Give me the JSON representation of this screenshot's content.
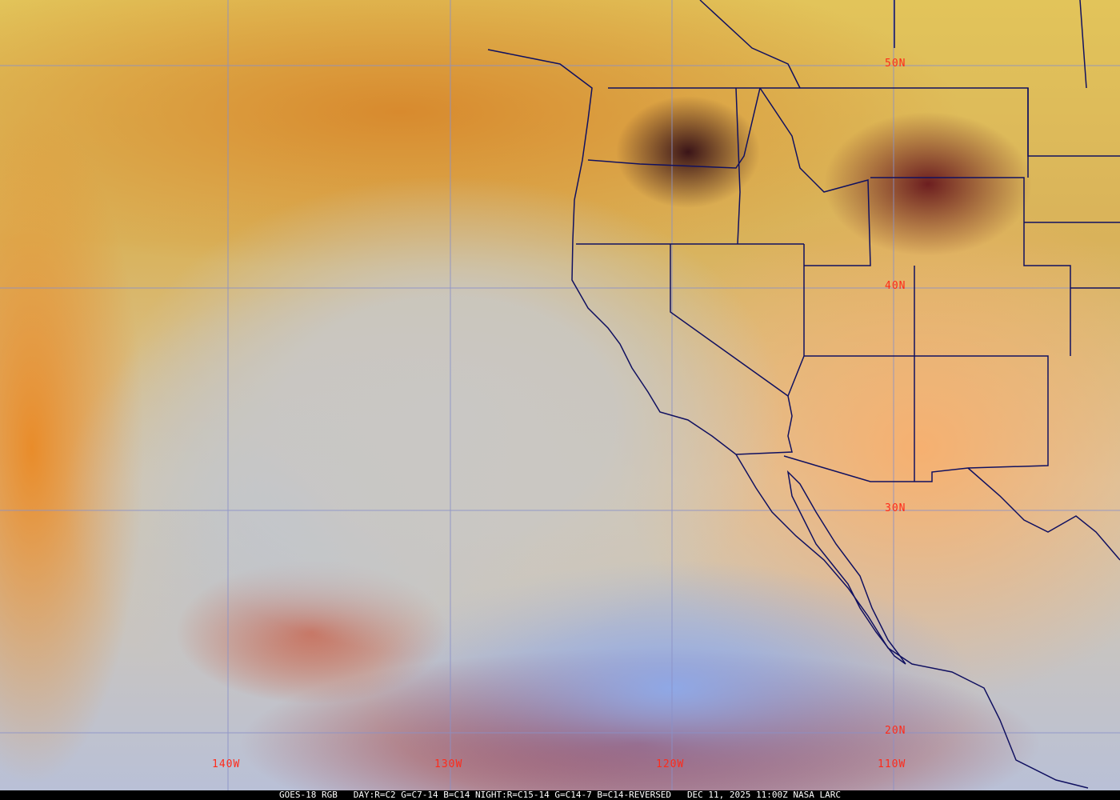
{
  "map": {
    "longitude_labels": [
      "140W",
      "130W",
      "120W",
      "110W"
    ],
    "latitude_labels": [
      "50N",
      "40N",
      "30N",
      "20N"
    ],
    "grid_color": "#8a90c8",
    "border_color": "#101060",
    "label_color": "#ff2a1a"
  },
  "caption": {
    "satellite": "GOES-18 RGB",
    "product": "DAY:R=C2 G=C7-14 B=C14 NIGHT:R=C15-14 G=C14-7 B=C14-REVERSED",
    "datetime": "DEC 11, 2025 11:00Z",
    "credit": "NASA LARC"
  }
}
